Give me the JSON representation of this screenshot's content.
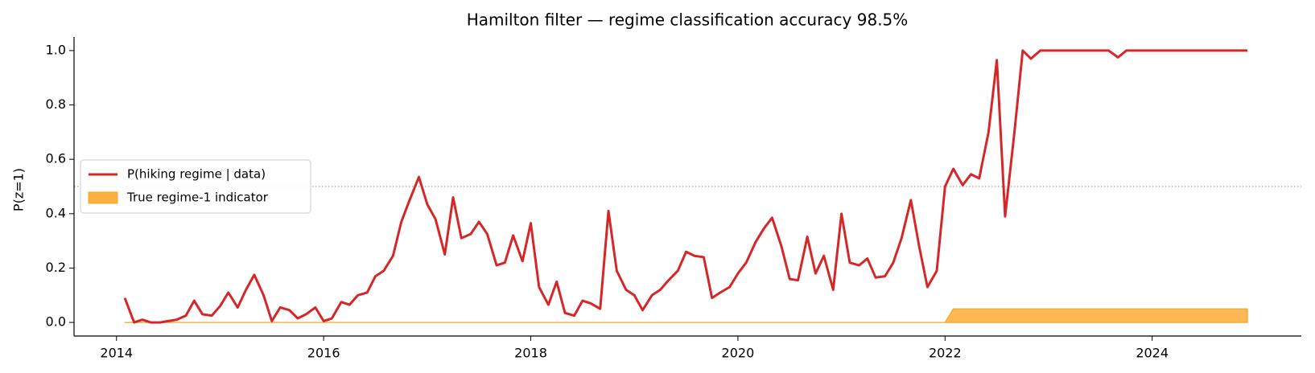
{
  "chart_data": {
    "type": "line",
    "title": "Hamilton filter — regime classification accuracy 98.5%",
    "y_label": "P(z=1)",
    "x": [
      2014.08,
      2014.17,
      2014.25,
      2014.33,
      2014.42,
      2014.5,
      2014.58,
      2014.67,
      2014.75,
      2014.83,
      2014.92,
      2015,
      2015.08,
      2015.17,
      2015.25,
      2015.33,
      2015.42,
      2015.5,
      2015.58,
      2015.67,
      2015.75,
      2015.83,
      2015.92,
      2016,
      2016.08,
      2016.17,
      2016.25,
      2016.33,
      2016.42,
      2016.5,
      2016.58,
      2016.67,
      2016.75,
      2016.83,
      2016.92,
      2017,
      2017.08,
      2017.17,
      2017.25,
      2017.33,
      2017.42,
      2017.5,
      2017.58,
      2017.67,
      2017.75,
      2017.83,
      2017.92,
      2018,
      2018.08,
      2018.17,
      2018.25,
      2018.33,
      2018.42,
      2018.5,
      2018.58,
      2018.67,
      2018.75,
      2018.83,
      2018.92,
      2019,
      2019.08,
      2019.17,
      2019.25,
      2019.33,
      2019.42,
      2019.5,
      2019.58,
      2019.67,
      2019.75,
      2019.83,
      2019.92,
      2020,
      2020.08,
      2020.17,
      2020.25,
      2020.33,
      2020.42,
      2020.5,
      2020.58,
      2020.67,
      2020.75,
      2020.83,
      2020.92,
      2021,
      2021.08,
      2021.17,
      2021.25,
      2021.33,
      2021.42,
      2021.5,
      2021.58,
      2021.67,
      2021.75,
      2021.83,
      2021.92,
      2022,
      2022.08,
      2022.17,
      2022.25,
      2022.33,
      2022.42,
      2022.5,
      2022.58,
      2022.67,
      2022.75,
      2022.83,
      2022.92,
      2023,
      2023.08,
      2023.17,
      2023.25,
      2023.33,
      2023.42,
      2023.5,
      2023.58,
      2023.67,
      2023.75,
      2023.83,
      2023.92,
      2024,
      2024.08,
      2024.17,
      2024.25,
      2024.33,
      2024.42,
      2024.5,
      2024.58,
      2024.67,
      2024.75,
      2024.83,
      2024.92
    ],
    "series": [
      {
        "name": "P(hiking regime | data)",
        "color": "#d62728",
        "style": "line",
        "values": [
          0.09,
          0,
          0.01,
          0,
          0,
          0.005,
          0.01,
          0.025,
          0.08,
          0.03,
          0.025,
          0.06,
          0.11,
          0.055,
          0.12,
          0.175,
          0.1,
          0.005,
          0.055,
          0.045,
          0.015,
          0.03,
          0.055,
          0.005,
          0.015,
          0.075,
          0.065,
          0.1,
          0.11,
          0.17,
          0.19,
          0.245,
          0.37,
          0.45,
          0.535,
          0.435,
          0.38,
          0.25,
          0.46,
          0.31,
          0.325,
          0.37,
          0.325,
          0.21,
          0.22,
          0.32,
          0.225,
          0.365,
          0.13,
          0.065,
          0.15,
          0.035,
          0.025,
          0.08,
          0.07,
          0.05,
          0.41,
          0.19,
          0.12,
          0.1,
          0.045,
          0.1,
          0.12,
          0.155,
          0.19,
          0.26,
          0.245,
          0.24,
          0.09,
          0.11,
          0.13,
          0.18,
          0.22,
          0.295,
          0.345,
          0.385,
          0.28,
          0.16,
          0.155,
          0.315,
          0.18,
          0.245,
          0.12,
          0.4,
          0.22,
          0.21,
          0.235,
          0.165,
          0.17,
          0.22,
          0.31,
          0.45,
          0.28,
          0.13,
          0.19,
          0.5,
          0.565,
          0.505,
          0.545,
          0.53,
          0.7,
          0.965,
          0.39,
          0.7,
          1,
          0.97,
          1,
          1,
          1,
          1,
          1,
          1,
          1,
          1,
          1,
          0.975,
          1,
          1,
          1,
          1,
          1,
          1,
          1,
          1,
          1,
          1,
          1,
          1,
          1,
          1,
          1
        ]
      },
      {
        "name": "True regime-1 indicator",
        "color": "#fbb040",
        "edge_color": "#f5a623",
        "style": "area",
        "values": [
          0,
          0,
          0,
          0,
          0,
          0,
          0,
          0,
          0,
          0,
          0,
          0,
          0,
          0,
          0,
          0,
          0,
          0,
          0,
          0,
          0,
          0,
          0,
          0,
          0,
          0,
          0,
          0,
          0,
          0,
          0,
          0,
          0,
          0,
          0,
          0,
          0,
          0,
          0,
          0,
          0,
          0,
          0,
          0,
          0,
          0,
          0,
          0,
          0,
          0,
          0,
          0,
          0,
          0,
          0,
          0,
          0,
          0,
          0,
          0,
          0,
          0,
          0,
          0,
          0,
          0,
          0,
          0,
          0,
          0,
          0,
          0,
          0,
          0,
          0,
          0,
          0,
          0,
          0,
          0,
          0,
          0,
          0,
          0,
          0,
          0,
          0,
          0,
          0,
          0,
          0,
          0,
          0,
          0,
          0,
          0,
          0.05,
          0.05,
          0.05,
          0.05,
          0.05,
          0.05,
          0.05,
          0.05,
          0.05,
          0.05,
          0.05,
          0.05,
          0.05,
          0.05,
          0.05,
          0.05,
          0.05,
          0.05,
          0.05,
          0.05,
          0.05,
          0.05,
          0.05,
          0.05,
          0.05,
          0.05,
          0.05,
          0.05,
          0.05,
          0.05,
          0.05,
          0.05,
          0.05,
          0.05,
          0.05
        ]
      }
    ],
    "reference_line": 0.5,
    "xlim": [
      2013.59,
      2025.44
    ],
    "xticks": [
      2014,
      2016,
      2018,
      2020,
      2022,
      2024
    ],
    "ylim": [
      -0.05,
      1.05
    ],
    "yticks": [
      {
        "value": 0,
        "label": "0.0"
      },
      0.2,
      0.4,
      0.6,
      0.8,
      {
        "value": 1,
        "label": "1.0"
      }
    ],
    "grid": false,
    "legend": "center left"
  }
}
